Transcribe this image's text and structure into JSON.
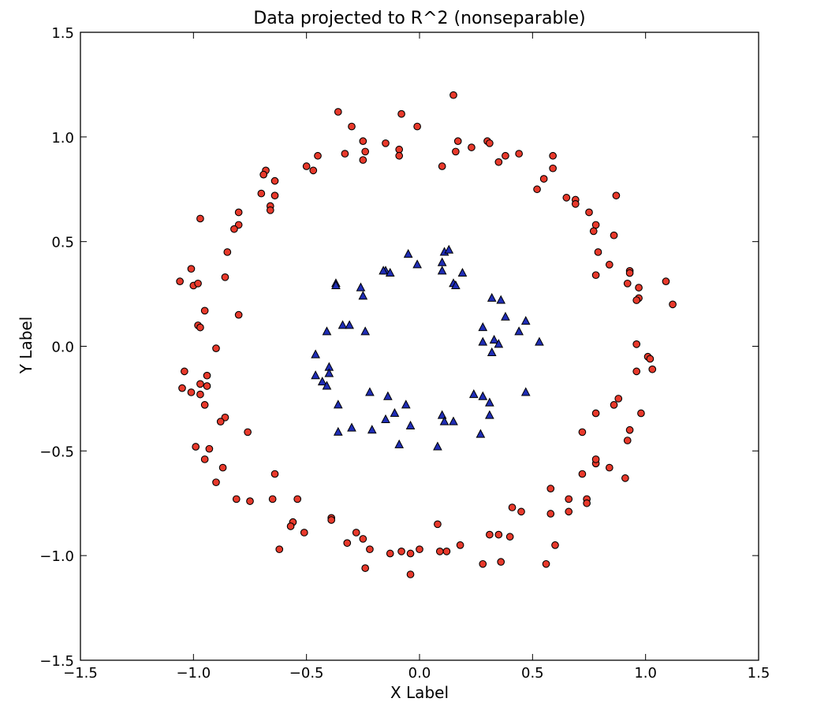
{
  "chart_data": {
    "type": "scatter",
    "title": "Data projected to R^2 (nonseparable)",
    "xlabel": "X Label",
    "ylabel": "Y Label",
    "xlim": [
      -1.5,
      1.5
    ],
    "ylim": [
      -1.5,
      1.5
    ],
    "xticks": [
      -1.5,
      -1.0,
      -0.5,
      0.0,
      0.5,
      1.0,
      1.5
    ],
    "yticks": [
      -1.5,
      -1.0,
      -0.5,
      0.0,
      0.5,
      1.0,
      1.5
    ],
    "xtick_labels": [
      "−1.5",
      "−1.0",
      "−0.5",
      "0.0",
      "0.5",
      "1.0",
      "1.5"
    ],
    "ytick_labels": [
      "−1.5",
      "−1.0",
      "−0.5",
      "0.0",
      "0.5",
      "1.0",
      "1.5"
    ],
    "grid": false,
    "colors": {
      "outer": "#e8392b",
      "inner": "#1f2db5",
      "edge": "#000000"
    },
    "series": [
      {
        "marker": "circle",
        "color": "#e8392b",
        "points": [
          [
            0.15,
            1.2
          ],
          [
            -0.36,
            1.12
          ],
          [
            -0.3,
            1.05
          ],
          [
            -0.08,
            1.11
          ],
          [
            -0.01,
            1.05
          ],
          [
            -0.25,
            0.98
          ],
          [
            -0.15,
            0.97
          ],
          [
            -0.09,
            0.94
          ],
          [
            -0.09,
            0.91
          ],
          [
            -0.24,
            0.93
          ],
          [
            -0.33,
            0.92
          ],
          [
            -0.45,
            0.91
          ],
          [
            -0.25,
            0.89
          ],
          [
            -0.5,
            0.86
          ],
          [
            -0.47,
            0.84
          ],
          [
            0.1,
            0.86
          ],
          [
            0.17,
            0.98
          ],
          [
            0.16,
            0.93
          ],
          [
            0.23,
            0.95
          ],
          [
            0.3,
            0.98
          ],
          [
            0.31,
            0.97
          ],
          [
            0.38,
            0.91
          ],
          [
            0.44,
            0.92
          ],
          [
            0.35,
            0.88
          ],
          [
            0.59,
            0.91
          ],
          [
            0.59,
            0.85
          ],
          [
            -0.68,
            0.84
          ],
          [
            -0.69,
            0.82
          ],
          [
            -0.64,
            0.79
          ],
          [
            -0.7,
            0.73
          ],
          [
            -0.64,
            0.72
          ],
          [
            -0.66,
            0.67
          ],
          [
            -0.66,
            0.65
          ],
          [
            0.55,
            0.8
          ],
          [
            0.52,
            0.75
          ],
          [
            0.65,
            0.71
          ],
          [
            0.69,
            0.7
          ],
          [
            0.69,
            0.68
          ],
          [
            0.87,
            0.72
          ],
          [
            0.75,
            0.64
          ],
          [
            0.78,
            0.58
          ],
          [
            0.77,
            0.55
          ],
          [
            0.86,
            0.53
          ],
          [
            0.79,
            0.45
          ],
          [
            0.84,
            0.39
          ],
          [
            0.78,
            0.34
          ],
          [
            0.93,
            0.36
          ],
          [
            0.93,
            0.35
          ],
          [
            0.92,
            0.3
          ],
          [
            0.97,
            0.28
          ],
          [
            0.97,
            0.23
          ],
          [
            0.96,
            0.22
          ],
          [
            1.09,
            0.31
          ],
          [
            1.12,
            0.2
          ],
          [
            -0.97,
            0.61
          ],
          [
            -0.8,
            0.64
          ],
          [
            -0.8,
            0.58
          ],
          [
            -0.82,
            0.56
          ],
          [
            -0.85,
            0.45
          ],
          [
            -0.86,
            0.33
          ],
          [
            -1.06,
            0.31
          ],
          [
            -1.01,
            0.37
          ],
          [
            -1.0,
            0.29
          ],
          [
            -0.98,
            0.3
          ],
          [
            -0.95,
            0.17
          ],
          [
            -0.8,
            0.15
          ],
          [
            -0.98,
            0.1
          ],
          [
            -0.97,
            0.09
          ],
          [
            -0.9,
            -0.01
          ],
          [
            -1.04,
            -0.12
          ],
          [
            -0.94,
            -0.14
          ],
          [
            -0.97,
            -0.18
          ],
          [
            -1.05,
            -0.2
          ],
          [
            -0.94,
            -0.19
          ],
          [
            -1.01,
            -0.22
          ],
          [
            -0.97,
            -0.23
          ],
          [
            -0.95,
            -0.28
          ],
          [
            -0.86,
            -0.34
          ],
          [
            -0.88,
            -0.36
          ],
          [
            -0.76,
            -0.41
          ],
          [
            -0.93,
            -0.49
          ],
          [
            -0.99,
            -0.48
          ],
          [
            -0.95,
            -0.54
          ],
          [
            -0.87,
            -0.58
          ],
          [
            -0.64,
            -0.61
          ],
          [
            -0.9,
            -0.65
          ],
          [
            -0.81,
            -0.73
          ],
          [
            -0.75,
            -0.74
          ],
          [
            -0.65,
            -0.73
          ],
          [
            -0.54,
            -0.73
          ],
          [
            -0.56,
            -0.84
          ],
          [
            -0.57,
            -0.86
          ],
          [
            -0.51,
            -0.89
          ],
          [
            -0.39,
            -0.82
          ],
          [
            -0.39,
            -0.83
          ],
          [
            -0.62,
            -0.97
          ],
          [
            -0.32,
            -0.94
          ],
          [
            -0.28,
            -0.89
          ],
          [
            -0.25,
            -0.92
          ],
          [
            -0.22,
            -0.97
          ],
          [
            -0.24,
            -1.06
          ],
          [
            -0.13,
            -0.99
          ],
          [
            -0.08,
            -0.98
          ],
          [
            -0.04,
            -0.99
          ],
          [
            -0.04,
            -1.09
          ],
          [
            0.0,
            -0.97
          ],
          [
            0.09,
            -0.98
          ],
          [
            0.12,
            -0.98
          ],
          [
            0.08,
            -0.85
          ],
          [
            0.18,
            -0.95
          ],
          [
            0.28,
            -1.04
          ],
          [
            0.31,
            -0.9
          ],
          [
            0.35,
            -0.9
          ],
          [
            0.36,
            -1.03
          ],
          [
            0.4,
            -0.91
          ],
          [
            0.41,
            -0.77
          ],
          [
            0.45,
            -0.79
          ],
          [
            0.56,
            -1.04
          ],
          [
            0.6,
            -0.95
          ],
          [
            0.58,
            -0.8
          ],
          [
            0.58,
            -0.68
          ],
          [
            0.66,
            -0.79
          ],
          [
            0.66,
            -0.73
          ],
          [
            0.74,
            -0.73
          ],
          [
            0.74,
            -0.75
          ],
          [
            0.72,
            -0.61
          ],
          [
            0.78,
            -0.56
          ],
          [
            0.78,
            -0.54
          ],
          [
            0.84,
            -0.58
          ],
          [
            0.91,
            -0.63
          ],
          [
            0.72,
            -0.41
          ],
          [
            0.78,
            -0.32
          ],
          [
            0.86,
            -0.28
          ],
          [
            0.88,
            -0.25
          ],
          [
            0.92,
            -0.45
          ],
          [
            0.93,
            -0.4
          ],
          [
            0.98,
            -0.32
          ],
          [
            0.96,
            0.01
          ],
          [
            0.96,
            -0.12
          ],
          [
            1.01,
            -0.05
          ],
          [
            1.02,
            -0.06
          ],
          [
            1.03,
            -0.11
          ]
        ]
      },
      {
        "marker": "triangle",
        "color": "#1f2db5",
        "points": [
          [
            -0.05,
            0.44
          ],
          [
            -0.01,
            0.39
          ],
          [
            0.1,
            0.36
          ],
          [
            0.1,
            0.4
          ],
          [
            0.11,
            0.45
          ],
          [
            0.13,
            0.46
          ],
          [
            0.15,
            0.3
          ],
          [
            0.16,
            0.29
          ],
          [
            0.19,
            0.35
          ],
          [
            -0.15,
            0.36
          ],
          [
            -0.16,
            0.36
          ],
          [
            -0.13,
            0.35
          ],
          [
            -0.37,
            0.3
          ],
          [
            -0.37,
            0.29
          ],
          [
            -0.26,
            0.28
          ],
          [
            -0.25,
            0.24
          ],
          [
            -0.41,
            0.07
          ],
          [
            -0.34,
            0.1
          ],
          [
            -0.31,
            0.1
          ],
          [
            -0.24,
            0.07
          ],
          [
            0.32,
            0.23
          ],
          [
            0.36,
            0.22
          ],
          [
            0.38,
            0.14
          ],
          [
            0.28,
            0.09
          ],
          [
            0.28,
            0.02
          ],
          [
            0.33,
            0.03
          ],
          [
            0.35,
            0.01
          ],
          [
            0.32,
            -0.03
          ],
          [
            0.44,
            0.07
          ],
          [
            0.47,
            0.12
          ],
          [
            0.53,
            0.02
          ],
          [
            0.47,
            -0.22
          ],
          [
            -0.46,
            -0.04
          ],
          [
            -0.4,
            -0.1
          ],
          [
            -0.4,
            -0.13
          ],
          [
            -0.46,
            -0.14
          ],
          [
            -0.43,
            -0.17
          ],
          [
            -0.41,
            -0.19
          ],
          [
            -0.22,
            -0.22
          ],
          [
            -0.14,
            -0.24
          ],
          [
            -0.36,
            -0.28
          ],
          [
            -0.11,
            -0.32
          ],
          [
            -0.15,
            -0.35
          ],
          [
            -0.06,
            -0.28
          ],
          [
            -0.04,
            -0.38
          ],
          [
            -0.09,
            -0.47
          ],
          [
            -0.3,
            -0.39
          ],
          [
            -0.36,
            -0.41
          ],
          [
            -0.21,
            -0.4
          ],
          [
            0.1,
            -0.33
          ],
          [
            0.11,
            -0.36
          ],
          [
            0.15,
            -0.36
          ],
          [
            0.08,
            -0.48
          ],
          [
            0.24,
            -0.23
          ],
          [
            0.28,
            -0.24
          ],
          [
            0.31,
            -0.27
          ],
          [
            0.31,
            -0.33
          ],
          [
            0.27,
            -0.42
          ]
        ]
      }
    ]
  }
}
